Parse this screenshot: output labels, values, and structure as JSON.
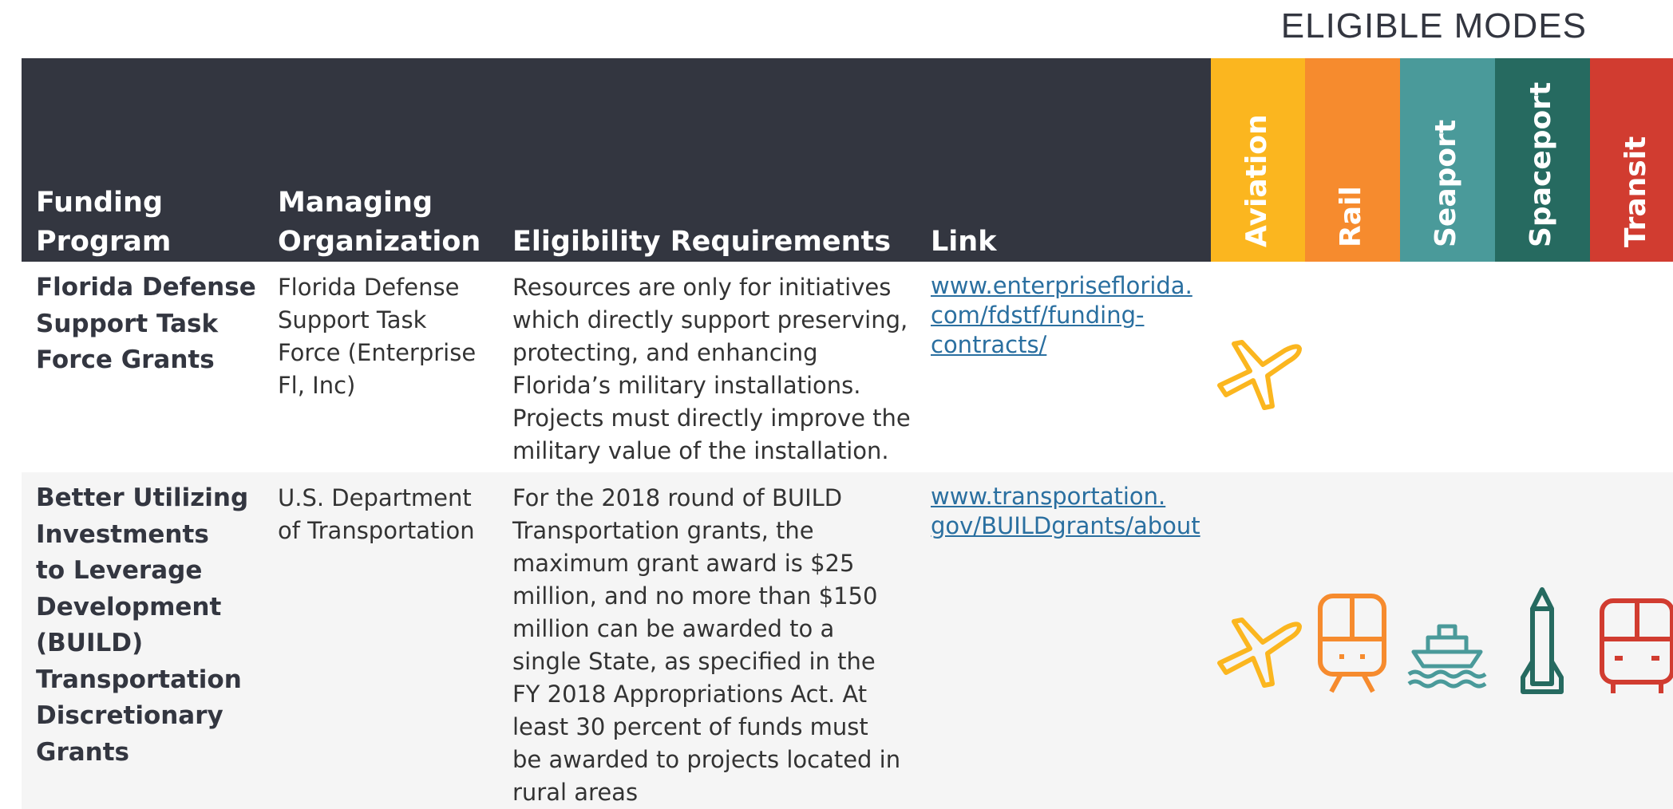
{
  "title": "ELIGIBLE MODES",
  "header": {
    "columns": [
      [
        "Funding",
        "Program"
      ],
      [
        "Managing",
        "Organization"
      ],
      [
        "Eligibility Requirements"
      ],
      [
        "Link"
      ]
    ],
    "modes": [
      "Aviation",
      "Rail",
      "Seaport",
      "Spaceport",
      "Transit"
    ]
  },
  "mode_colors": [
    "#fbb61f",
    "#f68b2e",
    "#4a9a9a",
    "#266a60",
    "#d13c30"
  ],
  "rows": [
    {
      "program": [
        "Florida Defense",
        "Support Task",
        "Force Grants"
      ],
      "organization": [
        "Florida Defense",
        "Support Task",
        "Force (Enterprise",
        "Fl, Inc)"
      ],
      "requirements": [
        "Resources are only for initiatives",
        "which directly support preserving,",
        "protecting, and enhancing",
        "Florida’s military installations.",
        "Projects must directly improve the",
        "military value of the installation."
      ],
      "link": [
        "www.enterpriseflorida.",
        "com/fdstf/funding-",
        "contracts/"
      ],
      "modes": [
        true,
        false,
        false,
        false,
        false
      ]
    },
    {
      "program": [
        "Better Utilizing",
        "Investments",
        "to Leverage",
        "Development",
        "(BUILD)",
        "Transportation",
        "Discretionary",
        "Grants"
      ],
      "organization": [
        "U.S. Department",
        "of Transportation"
      ],
      "requirements": [
        "For the 2018 round of BUILD",
        "Transportation grants, the",
        "maximum grant award is $25",
        "million, and no more than $150",
        "million can be awarded to a",
        "single State, as specified in the",
        "FY 2018 Appropriations Act. At",
        "least 30 percent of funds must",
        "be awarded to projects located in",
        "rural areas"
      ],
      "link": [
        "www.transportation.",
        "gov/BUILDgrants/about"
      ],
      "modes": [
        true,
        true,
        true,
        true,
        true
      ]
    }
  ]
}
